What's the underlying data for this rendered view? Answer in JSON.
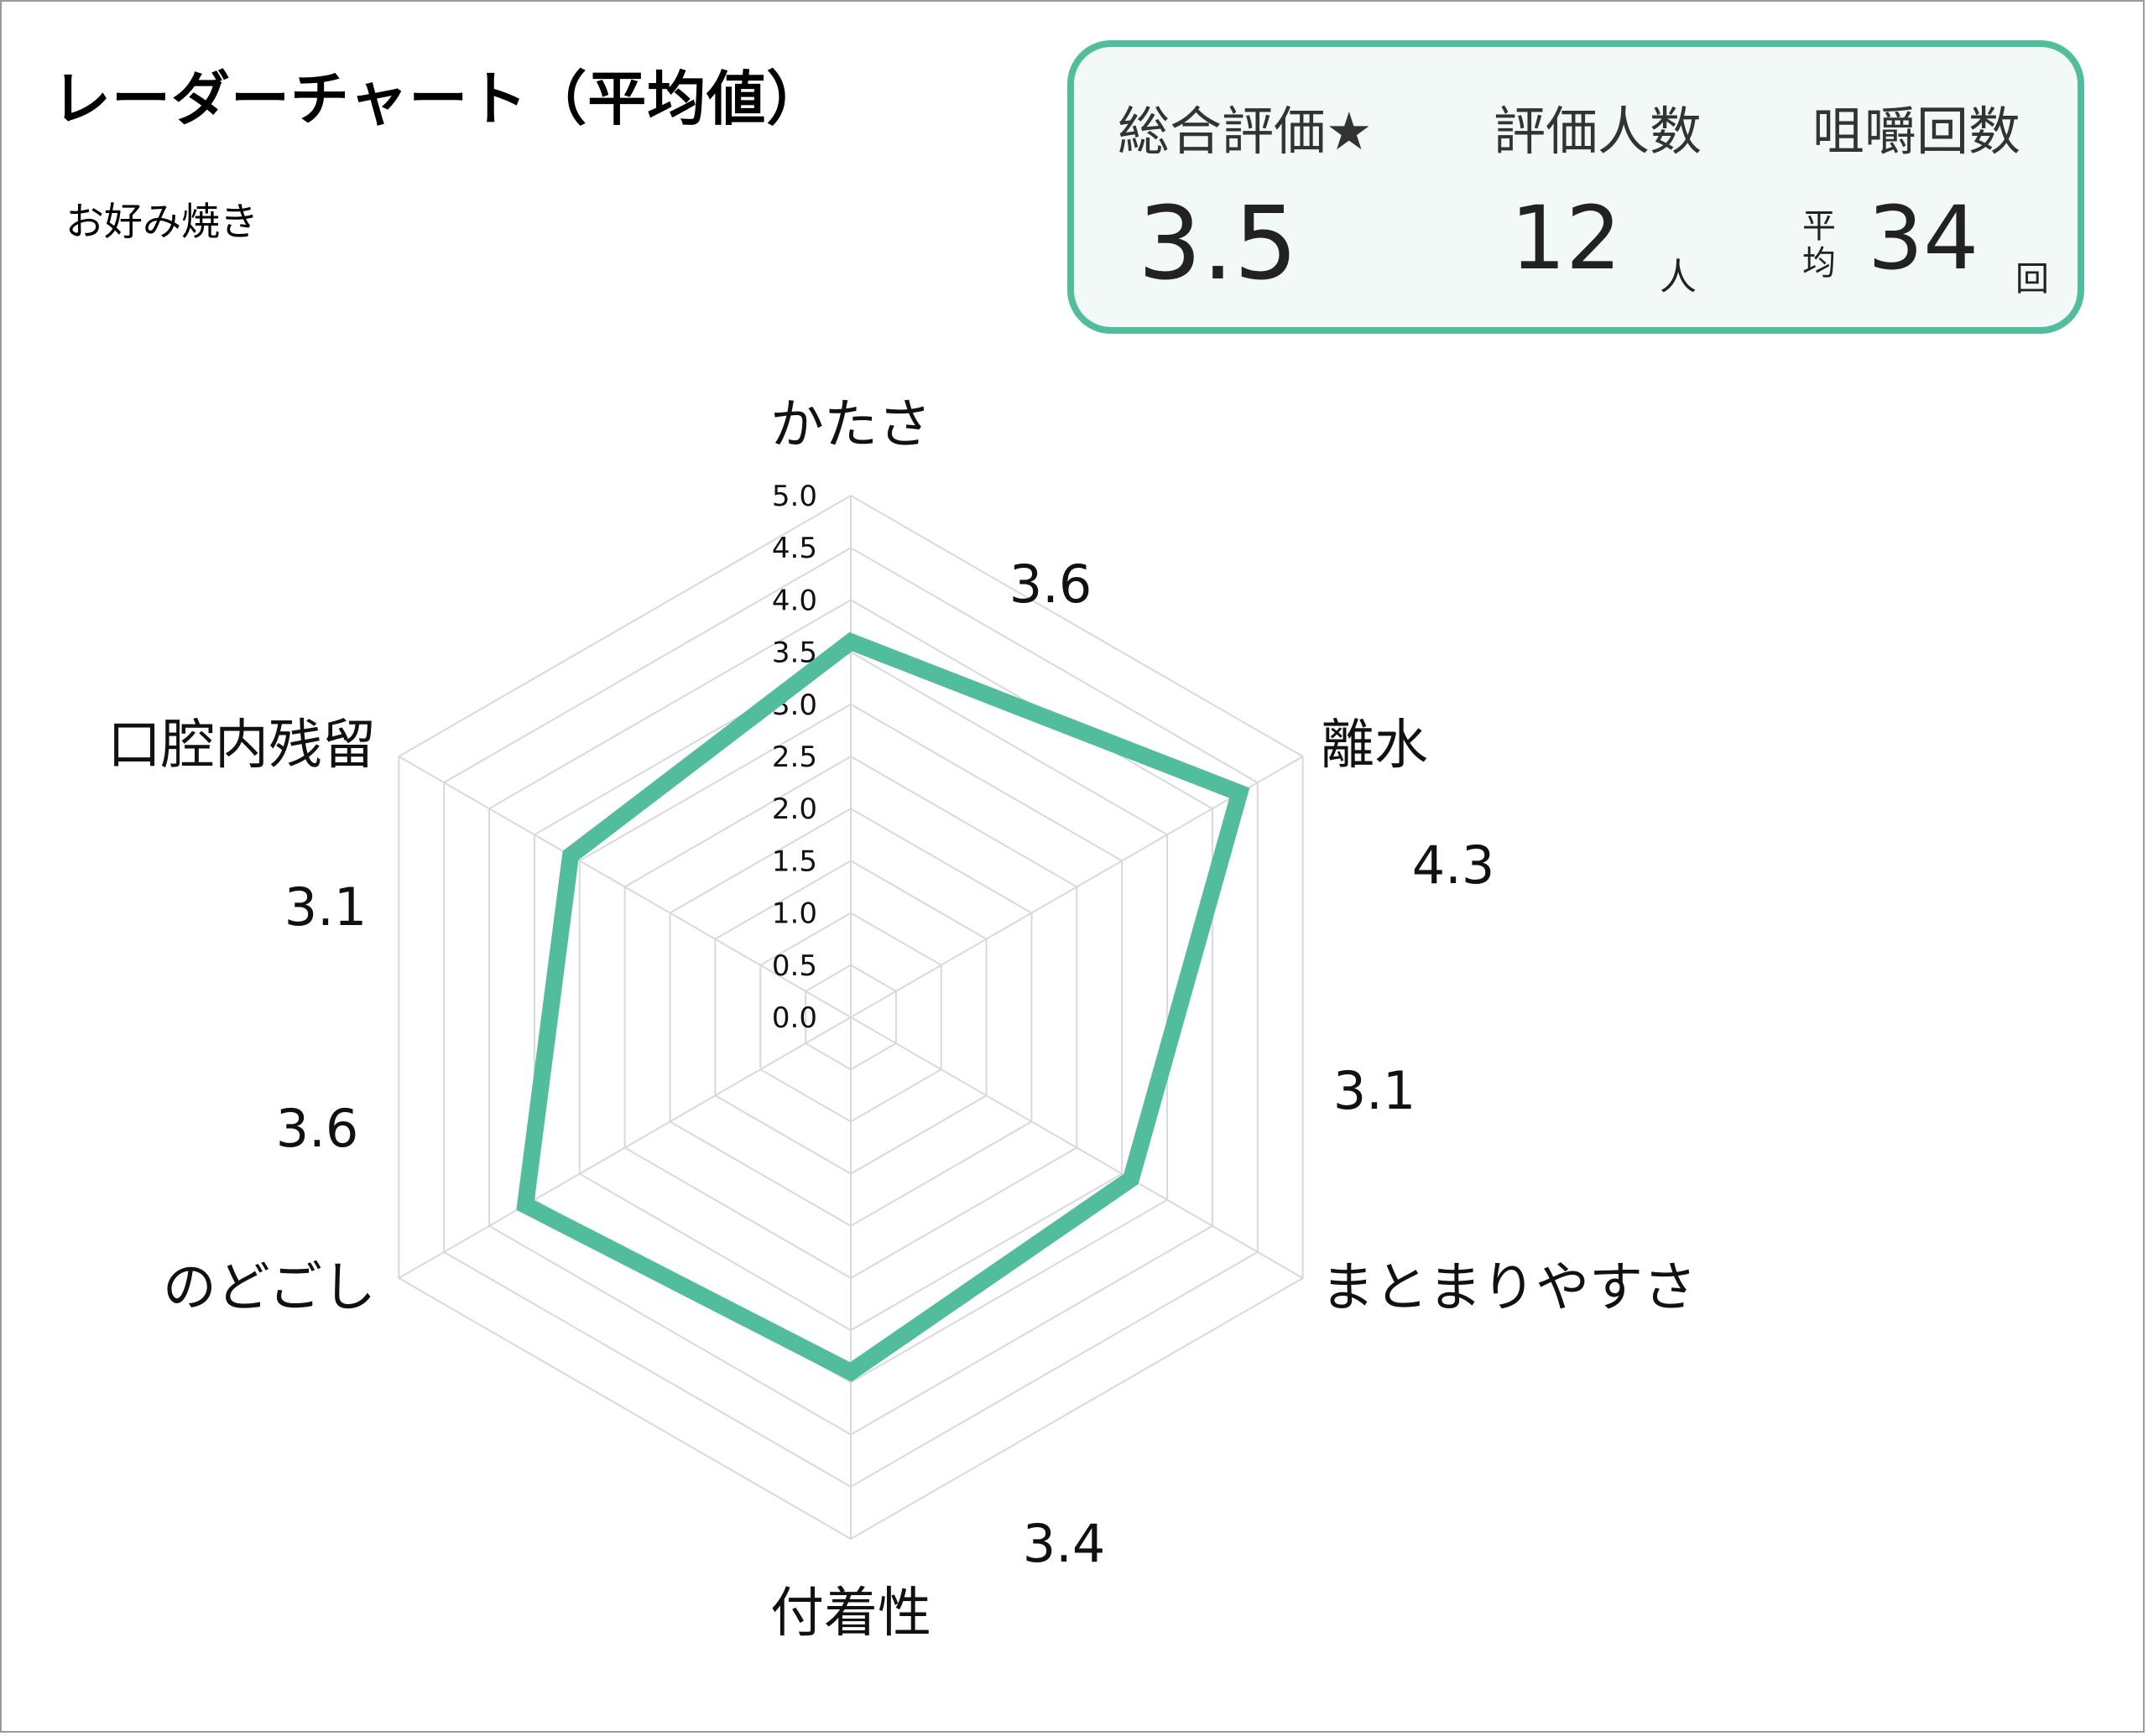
{
  "header": {
    "title": "レーダーチャート（平均値）",
    "subtitle": "お好み焼き"
  },
  "summary": {
    "overall_label": "総合評価★",
    "overall_value": "3.5",
    "raters_label": "評価人数",
    "raters_value": "12",
    "raters_unit": "人",
    "chew_label": "咀嚼回数",
    "chew_prefix": "平均",
    "chew_value": "34",
    "chew_unit": "回"
  },
  "colors": {
    "accent": "#52bd9c",
    "grid": "#d9d9d9",
    "panel_bg": "#f3f9f7"
  },
  "chart_data": {
    "type": "radar",
    "categories": [
      "かたさ",
      "離水",
      "まとまりやすさ",
      "付着性",
      "のどごし",
      "口腔内残留"
    ],
    "values": [
      3.6,
      4.3,
      3.1,
      3.4,
      3.6,
      3.1
    ],
    "value_labels": [
      "3.6",
      "4.3",
      "3.1",
      "3.4",
      "3.6",
      "3.1"
    ],
    "rlim": [
      0,
      5
    ],
    "ticks": [
      "0.0",
      "0.5",
      "1.0",
      "1.5",
      "2.0",
      "2.5",
      "3.0",
      "3.5",
      "4.0",
      "4.5",
      "5.0"
    ],
    "grid": true
  }
}
